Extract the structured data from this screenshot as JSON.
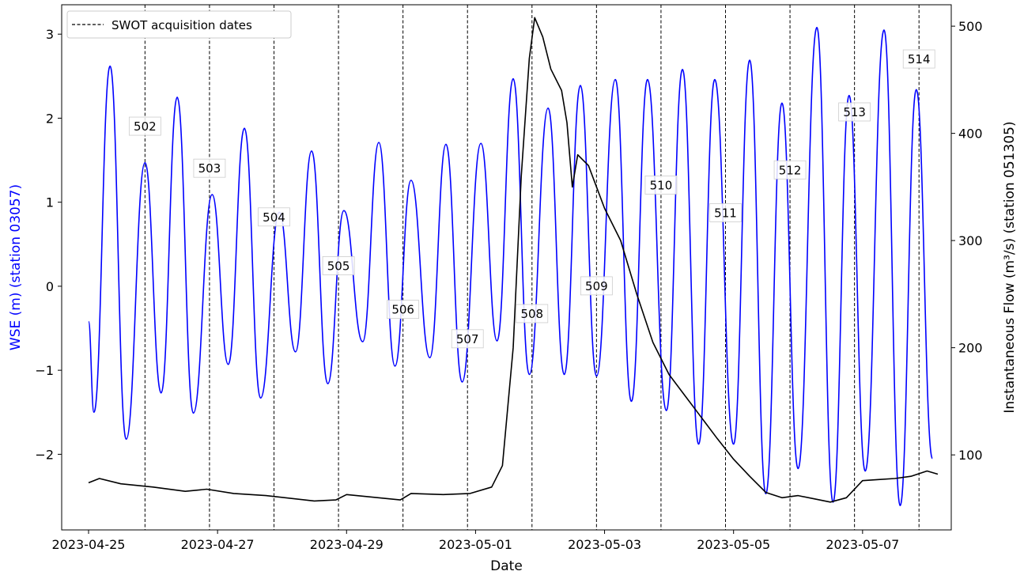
{
  "chart_data": {
    "type": "line",
    "xlabel": "Date",
    "ylabel_left": "WSE (m) (station 03057)",
    "ylabel_right": "Instantaneous Flow (m³/s) (station 051305)",
    "x_ticks": [
      "2023-04-25",
      "2023-04-27",
      "2023-04-29",
      "2023-05-01",
      "2023-05-03",
      "2023-05-05",
      "2023-05-07"
    ],
    "y_left_ticks": [
      -2,
      -1,
      0,
      1,
      2,
      3
    ],
    "y_left_tick_labels": [
      "−2",
      "−1",
      "0",
      "1",
      "2",
      "3"
    ],
    "y_right_ticks": [
      100,
      200,
      300,
      400,
      500
    ],
    "xlim": [
      "2023-04-24 14:00",
      "2023-05-08 09:00"
    ],
    "ylim_left": [
      -2.9,
      3.35
    ],
    "ylim_right": [
      30,
      520
    ],
    "legend": {
      "entries": [
        "SWOT acquisition dates"
      ],
      "placement": "top-left"
    },
    "colors": {
      "wse": "#0000ff",
      "flow": "#000000",
      "acquisition": "#000000",
      "left_axis_label": "#0000ff"
    },
    "acquisitions": [
      {
        "pass": "502",
        "date": "2023-04-25 21:00",
        "label_wse": 1.9
      },
      {
        "pass": "503",
        "date": "2023-04-26 21:00",
        "label_wse": 1.4
      },
      {
        "pass": "504",
        "date": "2023-04-27 21:00",
        "label_wse": 0.82
      },
      {
        "pass": "505",
        "date": "2023-04-28 21:00",
        "label_wse": 0.24
      },
      {
        "pass": "506",
        "date": "2023-04-29 21:00",
        "label_wse": -0.28
      },
      {
        "pass": "507",
        "date": "2023-04-30 21:00",
        "label_wse": -0.63
      },
      {
        "pass": "508",
        "date": "2023-05-01 21:00",
        "label_wse": -0.33
      },
      {
        "pass": "509",
        "date": "2023-05-02 21:00",
        "label_wse": 0.0
      },
      {
        "pass": "510",
        "date": "2023-05-03 21:00",
        "label_wse": 1.2
      },
      {
        "pass": "511",
        "date": "2023-05-04 21:00",
        "label_wse": 0.87
      },
      {
        "pass": "512",
        "date": "2023-05-05 21:00",
        "label_wse": 1.38
      },
      {
        "pass": "513",
        "date": "2023-05-06 21:00",
        "label_wse": 2.07
      },
      {
        "pass": "514",
        "date": "2023-05-07 21:00",
        "label_wse": 2.7
      }
    ],
    "series": [
      {
        "name": "WSE (m) (station 03057)",
        "axis": "left",
        "points": [
          [
            "2023-04-25 00:00",
            -0.42
          ],
          [
            "2023-04-25 02:00",
            -1.5
          ],
          [
            "2023-04-25 08:00",
            2.62
          ],
          [
            "2023-04-25 14:00",
            -1.82
          ],
          [
            "2023-04-25 21:00",
            1.47
          ],
          [
            "2023-04-26 03:00",
            -1.27
          ],
          [
            "2023-04-26 09:00",
            2.25
          ],
          [
            "2023-04-26 15:00",
            -1.51
          ],
          [
            "2023-04-26 22:00",
            1.09
          ],
          [
            "2023-04-27 04:00",
            -0.93
          ],
          [
            "2023-04-27 10:00",
            1.88
          ],
          [
            "2023-04-27 16:00",
            -1.33
          ],
          [
            "2023-04-27 23:00",
            0.88
          ],
          [
            "2023-04-28 05:00",
            -0.78
          ],
          [
            "2023-04-28 11:00",
            1.61
          ],
          [
            "2023-04-28 17:00",
            -1.16
          ],
          [
            "2023-04-28 23:00",
            0.9
          ],
          [
            "2023-04-29 06:00",
            -0.66
          ],
          [
            "2023-04-29 12:00",
            1.71
          ],
          [
            "2023-04-29 18:00",
            -0.95
          ],
          [
            "2023-04-30 00:00",
            1.26
          ],
          [
            "2023-04-30 07:00",
            -0.85
          ],
          [
            "2023-04-30 13:00",
            1.69
          ],
          [
            "2023-04-30 19:00",
            -1.14
          ],
          [
            "2023-05-01 02:00",
            1.7
          ],
          [
            "2023-05-01 08:00",
            -0.65
          ],
          [
            "2023-05-01 14:00",
            2.47
          ],
          [
            "2023-05-01 20:00",
            -1.05
          ],
          [
            "2023-05-02 03:00",
            2.12
          ],
          [
            "2023-05-02 09:00",
            -1.05
          ],
          [
            "2023-05-02 15:00",
            2.39
          ],
          [
            "2023-05-02 21:00",
            -1.07
          ],
          [
            "2023-05-03 04:00",
            2.46
          ],
          [
            "2023-05-03 10:00",
            -1.37
          ],
          [
            "2023-05-03 16:00",
            2.46
          ],
          [
            "2023-05-03 23:00",
            -1.48
          ],
          [
            "2023-05-04 05:00",
            2.58
          ],
          [
            "2023-05-04 11:00",
            -1.88
          ],
          [
            "2023-05-04 17:00",
            2.46
          ],
          [
            "2023-05-05 00:00",
            -1.88
          ],
          [
            "2023-05-05 06:00",
            2.69
          ],
          [
            "2023-05-05 12:00",
            -2.47
          ],
          [
            "2023-05-05 18:00",
            2.18
          ],
          [
            "2023-05-06 00:00",
            -2.17
          ],
          [
            "2023-05-06 07:00",
            3.08
          ],
          [
            "2023-05-06 13:00",
            -2.57
          ],
          [
            "2023-05-06 19:00",
            2.27
          ],
          [
            "2023-05-07 01:00",
            -2.2
          ],
          [
            "2023-05-07 08:00",
            3.05
          ],
          [
            "2023-05-07 14:00",
            -2.61
          ],
          [
            "2023-05-07 20:00",
            2.34
          ],
          [
            "2023-05-08 02:00",
            -2.05
          ]
        ]
      },
      {
        "name": "Instantaneous Flow (m³/s) (station 051305)",
        "axis": "right",
        "points": [
          [
            "2023-04-25 00:00",
            74
          ],
          [
            "2023-04-25 04:00",
            78
          ],
          [
            "2023-04-25 12:00",
            73
          ],
          [
            "2023-04-26 00:00",
            70
          ],
          [
            "2023-04-26 12:00",
            66
          ],
          [
            "2023-04-26 20:00",
            68
          ],
          [
            "2023-04-27 06:00",
            64
          ],
          [
            "2023-04-27 18:00",
            62
          ],
          [
            "2023-04-28 12:00",
            57
          ],
          [
            "2023-04-28 20:00",
            58
          ],
          [
            "2023-04-29 00:00",
            63
          ],
          [
            "2023-04-29 20:00",
            58
          ],
          [
            "2023-04-30 00:00",
            64
          ],
          [
            "2023-04-30 12:00",
            63
          ],
          [
            "2023-04-30 22:00",
            64
          ],
          [
            "2023-05-01 06:00",
            70
          ],
          [
            "2023-05-01 10:00",
            90
          ],
          [
            "2023-05-01 14:00",
            200
          ],
          [
            "2023-05-01 17:00",
            360
          ],
          [
            "2023-05-01 20:00",
            470
          ],
          [
            "2023-05-01 22:00",
            508
          ],
          [
            "2023-05-02 01:00",
            490
          ],
          [
            "2023-05-02 04:00",
            460
          ],
          [
            "2023-05-02 06:00",
            450
          ],
          [
            "2023-05-02 08:00",
            440
          ],
          [
            "2023-05-02 10:00",
            410
          ],
          [
            "2023-05-02 12:00",
            350
          ],
          [
            "2023-05-02 14:00",
            380
          ],
          [
            "2023-05-02 18:00",
            370
          ],
          [
            "2023-05-03 00:00",
            330
          ],
          [
            "2023-05-03 06:00",
            300
          ],
          [
            "2023-05-03 12:00",
            250
          ],
          [
            "2023-05-03 18:00",
            205
          ],
          [
            "2023-05-04 00:00",
            175
          ],
          [
            "2023-05-04 06:00",
            155
          ],
          [
            "2023-05-04 12:00",
            135
          ],
          [
            "2023-05-04 18:00",
            115
          ],
          [
            "2023-05-05 00:00",
            96
          ],
          [
            "2023-05-05 06:00",
            80
          ],
          [
            "2023-05-05 12:00",
            65
          ],
          [
            "2023-05-05 18:00",
            60
          ],
          [
            "2023-05-06 00:00",
            62
          ],
          [
            "2023-05-06 06:00",
            59
          ],
          [
            "2023-05-06 12:00",
            56
          ],
          [
            "2023-05-06 18:00",
            60
          ],
          [
            "2023-05-07 00:00",
            76
          ],
          [
            "2023-05-07 06:00",
            77
          ],
          [
            "2023-05-07 12:00",
            78
          ],
          [
            "2023-05-07 18:00",
            80
          ],
          [
            "2023-05-08 00:00",
            85
          ],
          [
            "2023-05-08 04:00",
            82
          ]
        ]
      }
    ]
  }
}
